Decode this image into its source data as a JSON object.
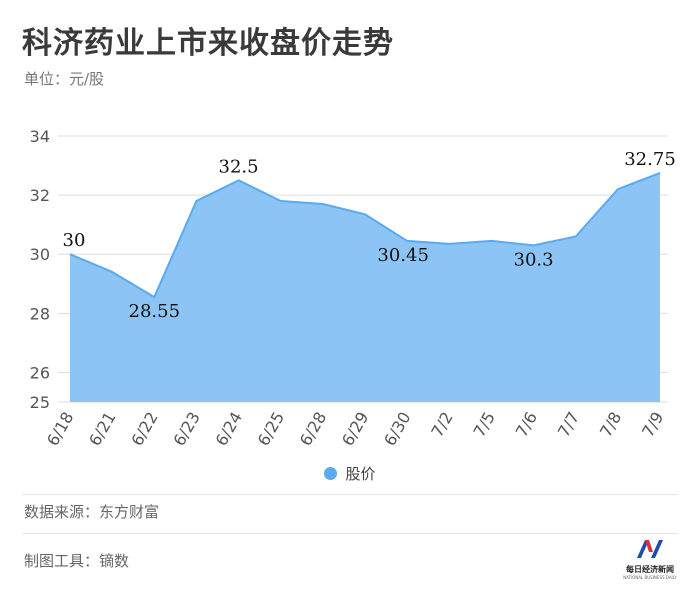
{
  "title": "科济药业上市来收盘价走势",
  "unit": "单位：元/股",
  "legend": {
    "label": "股价",
    "color": "#5aaaf0"
  },
  "source": "数据来源：东方财富",
  "tool": "制图工具：镝数",
  "logo": {
    "text": "每日经济新闻",
    "sub": "NATIONAL BUSINESS DAILY"
  },
  "colors": {
    "area_fill": "#8cc4f5",
    "line": "#5aaaf0",
    "grid": "#dddddd"
  },
  "chart_data": {
    "type": "area",
    "categories": [
      "6/18",
      "6/21",
      "6/22",
      "6/23",
      "6/24",
      "6/25",
      "6/28",
      "6/29",
      "6/30",
      "7/2",
      "7/5",
      "7/6",
      "7/7",
      "7/8",
      "7/9"
    ],
    "series": [
      {
        "name": "股价",
        "values": [
          30,
          29.4,
          28.55,
          31.8,
          32.5,
          31.8,
          31.7,
          31.35,
          30.45,
          30.35,
          30.45,
          30.3,
          30.6,
          32.2,
          32.75
        ]
      }
    ],
    "data_labels": [
      {
        "index": 0,
        "text": "30"
      },
      {
        "index": 2,
        "text": "28.55"
      },
      {
        "index": 4,
        "text": "32.5"
      },
      {
        "index": 8,
        "text": "30.45"
      },
      {
        "index": 11,
        "text": "30.3"
      },
      {
        "index": 14,
        "text": "32.75"
      }
    ],
    "yticks": [
      25,
      26,
      28,
      30,
      32,
      34
    ],
    "ylim": [
      25,
      34
    ],
    "grid": true,
    "legend_position": "bottom"
  }
}
